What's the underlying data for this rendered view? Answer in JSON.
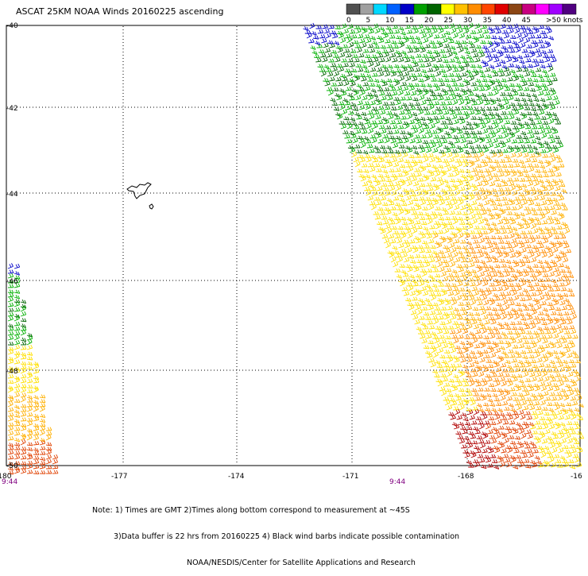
{
  "title": "ASCAT 25KM NOAA Winds 20160225 ascending",
  "legend": {
    "colors": [
      "#505050",
      "#a0a0a0",
      "#00d8ff",
      "#0060ff",
      "#0000c8",
      "#00a000",
      "#006400",
      "#ffff00",
      "#ffc000",
      "#ff8c00",
      "#ff4500",
      "#e00000",
      "#8b4513",
      "#c80080",
      "#ff00ff",
      "#a000ff",
      "#500080"
    ],
    "ticks": [
      "0",
      "5",
      "10",
      "15",
      "20",
      "25",
      "30",
      "35",
      "40",
      "45"
    ],
    "max_label": ">50 knots"
  },
  "map": {
    "lon_labels": [
      "-180",
      "-177",
      "-174",
      "-171",
      "-168",
      "-16"
    ],
    "lat_labels": [
      "-40",
      "-42",
      "-44",
      "-46",
      "-48",
      "-50"
    ],
    "time_labels": [
      "9:44",
      "9:44"
    ],
    "swath_colors": {
      "blue": "#0000c8",
      "green_light": "#00b000",
      "green_dark": "#006400",
      "yellow": "#ffe000",
      "orange_light": "#ffb000",
      "orange": "#ff8c00",
      "red_orange": "#e04000",
      "red": "#b00000"
    }
  },
  "notes": {
    "line1": "Note: 1) Times are GMT 2)Times along bottom correspond to measurement at ~45S",
    "line2": "3)Data buffer is 22 hrs from 20160225 4) Black wind barbs indicate possible contamination",
    "line3": "NOAA/NESDIS/Center for Satellite Applications and Research"
  }
}
